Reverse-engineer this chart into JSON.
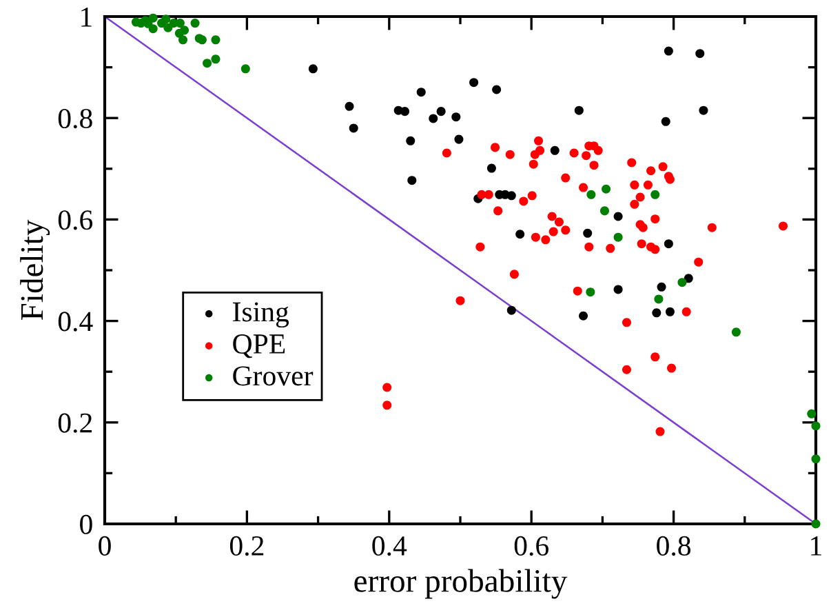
{
  "chart_data": {
    "type": "scatter",
    "xlabel": "error probability",
    "ylabel": "Fidelity",
    "xlim": [
      0,
      1
    ],
    "ylim": [
      0,
      1
    ],
    "xticks": [
      0,
      {
        "value": 0.1,
        "label": null
      },
      0.2,
      {
        "value": 0.3,
        "label": null
      },
      0.4,
      {
        "value": 0.5,
        "label": null
      },
      0.6,
      {
        "value": 0.7,
        "label": null
      },
      0.8,
      {
        "value": 0.9,
        "label": null
      },
      1
    ],
    "yticks": [
      0,
      {
        "value": 0.1,
        "label": null
      },
      0.2,
      {
        "value": 0.3,
        "label": null
      },
      0.4,
      {
        "value": 0.5,
        "label": null
      },
      0.6,
      {
        "value": 0.7,
        "label": null
      },
      0.8,
      {
        "value": 0.9,
        "label": null
      },
      1
    ],
    "grid": false,
    "legend": "left",
    "marker": "circle",
    "series": [
      {
        "name": "Ising",
        "color": "#000000",
        "x": [
          0.293,
          0.344,
          0.35,
          0.413,
          0.422,
          0.43,
          0.432,
          0.445,
          0.462,
          0.473,
          0.494,
          0.498,
          0.519,
          0.551,
          0.544,
          0.525,
          0.555,
          0.563,
          0.572,
          0.584,
          0.572,
          0.633,
          0.667,
          0.679,
          0.673,
          0.722,
          0.722,
          0.783,
          0.776,
          0.795,
          0.821,
          0.793,
          0.789,
          0.842,
          0.793,
          0.837
        ],
        "values": [
          0.897,
          0.823,
          0.78,
          0.815,
          0.813,
          0.755,
          0.677,
          0.851,
          0.799,
          0.813,
          0.802,
          0.758,
          0.87,
          0.856,
          0.701,
          0.641,
          0.649,
          0.649,
          0.647,
          0.571,
          0.421,
          0.736,
          0.815,
          0.573,
          0.41,
          0.606,
          0.462,
          0.467,
          0.416,
          0.418,
          0.484,
          0.552,
          0.793,
          0.815,
          0.932,
          0.927
        ]
      },
      {
        "name": "QPE",
        "color": "#ff0000",
        "x": [
          0.481,
          0.549,
          0.57,
          0.61,
          0.605,
          0.612,
          0.603,
          0.66,
          0.677,
          0.681,
          0.688,
          0.694,
          0.688,
          0.648,
          0.673,
          0.741,
          0.768,
          0.785,
          0.793,
          0.795,
          0.745,
          0.764,
          0.753,
          0.745,
          0.53,
          0.54,
          0.553,
          0.601,
          0.589,
          0.629,
          0.639,
          0.631,
          0.648,
          0.606,
          0.62,
          0.528,
          0.681,
          0.711,
          0.753,
          0.757,
          0.774,
          0.755,
          0.768,
          0.774,
          0.854,
          0.954,
          0.835,
          0.576,
          0.5,
          0.665,
          0.734,
          0.774,
          0.734,
          0.797,
          0.781,
          0.818,
          0.397,
          0.397
        ],
        "values": [
          0.731,
          0.742,
          0.728,
          0.755,
          0.728,
          0.736,
          0.709,
          0.731,
          0.726,
          0.745,
          0.745,
          0.736,
          0.707,
          0.682,
          0.663,
          0.712,
          0.696,
          0.704,
          0.685,
          0.679,
          0.668,
          0.668,
          0.644,
          0.63,
          0.649,
          0.649,
          0.617,
          0.647,
          0.636,
          0.606,
          0.595,
          0.576,
          0.579,
          0.565,
          0.56,
          0.546,
          0.546,
          0.543,
          0.59,
          0.584,
          0.601,
          0.552,
          0.546,
          0.541,
          0.584,
          0.587,
          0.516,
          0.492,
          0.44,
          0.459,
          0.397,
          0.329,
          0.304,
          0.307,
          0.182,
          0.418,
          0.269,
          0.234
        ]
      },
      {
        "name": "Grover",
        "color": "#008000",
        "x": [
          0.044,
          0.051,
          0.057,
          0.061,
          0.068,
          0.068,
          0.08,
          0.086,
          0.089,
          0.097,
          0.106,
          0.105,
          0.112,
          0.11,
          0.127,
          0.133,
          0.137,
          0.156,
          0.156,
          0.144,
          0.198,
          0.684,
          0.705,
          0.703,
          0.774,
          0.722,
          0.683,
          0.812,
          0.779,
          0.888,
          0.994,
          1.0,
          1.0,
          1.0
        ],
        "values": [
          0.989,
          0.987,
          0.992,
          0.986,
          0.997,
          0.976,
          0.987,
          0.995,
          0.978,
          0.987,
          0.987,
          0.967,
          0.973,
          0.954,
          0.987,
          0.957,
          0.954,
          0.954,
          0.916,
          0.908,
          0.897,
          0.649,
          0.66,
          0.617,
          0.649,
          0.565,
          0.457,
          0.476,
          0.443,
          0.378,
          0.217,
          0.193,
          0.128,
          0.0
        ]
      },
      {
        "type": "line",
        "color": "#7b3fd0",
        "marker": "none",
        "line_style": "solid",
        "x": [
          0,
          1
        ],
        "values": [
          1,
          0
        ]
      }
    ]
  }
}
